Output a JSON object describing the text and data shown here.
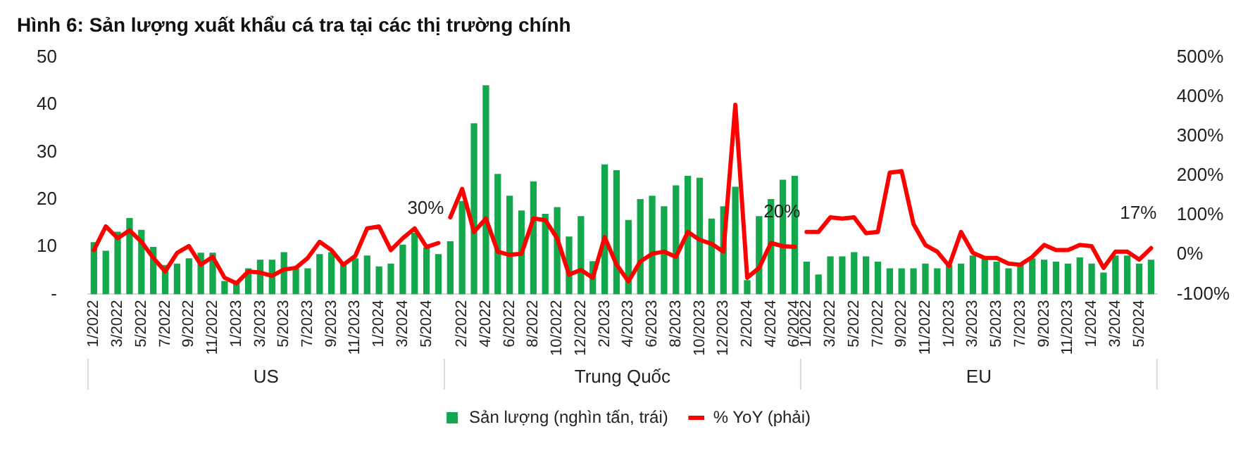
{
  "chart_data": {
    "type": "bar",
    "title": "Hình 6: Sản lượng xuất khẩu cá tra tại các thị trường chính",
    "categories": [
      "1/2022",
      null,
      "3/2022",
      null,
      "5/2022",
      null,
      "7/2022",
      null,
      "9/2022",
      null,
      "11/2022",
      null,
      "1/2023",
      null,
      "3/2023",
      null,
      "5/2023",
      null,
      "7/2023",
      null,
      "9/2023",
      null,
      "11/2023",
      null,
      "1/2024",
      null,
      "3/2024",
      null,
      "5/2024",
      null,
      null,
      "2/2022",
      null,
      "4/2022",
      null,
      "6/2022",
      null,
      "8/2022",
      null,
      "10/2022",
      null,
      "12/2022",
      null,
      "2/2023",
      null,
      "4/2023",
      null,
      "6/2023",
      null,
      "8/2023",
      null,
      "10/2023",
      null,
      "12/2023",
      null,
      "2/2024",
      null,
      "4/2024",
      null,
      "6/2024",
      "1/2022",
      null,
      "3/2022",
      null,
      "5/2022",
      null,
      "7/2022",
      null,
      "9/2022",
      null,
      "11/2022",
      null,
      "1/2023",
      null,
      "3/2023",
      null,
      "5/2023",
      null,
      "7/2023",
      null,
      "9/2023",
      null,
      "11/2023",
      null,
      "1/2024",
      null,
      "3/2024",
      null,
      "5/2024",
      null
    ],
    "series": [
      {
        "name": "Sản lượng (nghìn tấn, trái)",
        "color": "#13a84b",
        "values": [
          11,
          9.2,
          13.2,
          16.1,
          13.6,
          10,
          6.2,
          6.5,
          7.6,
          8.8,
          8.8,
          2.8,
          2.6,
          5.5,
          7.3,
          7.3,
          8.9,
          5.5,
          5.5,
          8.5,
          8.9,
          6.9,
          7.6,
          8.2,
          5.9,
          6.5,
          10.5,
          13,
          9.9,
          8.5,
          11.2,
          19.7,
          36.1,
          44.1,
          25.4,
          20.8,
          17.7,
          23.8,
          17,
          18.4,
          12.2,
          16.5,
          7,
          27.4,
          26.2,
          15.7,
          20.1,
          20.8,
          18.6,
          23,
          25,
          24.6,
          16,
          18.6,
          22.7,
          3,
          16.5,
          20.1,
          24.2,
          25,
          6.9,
          4.2,
          8,
          8,
          8.9,
          8,
          6.9,
          5.5,
          5.5,
          5.5,
          6.5,
          5.5,
          6.2,
          6.5,
          8.2,
          7.6,
          6.9,
          5.5,
          6.2,
          7.6,
          7.3,
          6.9,
          6.5,
          7.8,
          6.5,
          4.6,
          8.2,
          8.2,
          6.5,
          7.3
        ]
      },
      {
        "name": "% YoY (phải)",
        "type": "line",
        "axis": "y2",
        "color": "#ff0000",
        "values": [
          12,
          72,
          42,
          62,
          33,
          -8,
          -42,
          5,
          22,
          -25,
          -5,
          -58,
          -72,
          -42,
          -45,
          -53,
          -37,
          -33,
          -8,
          33,
          12,
          -25,
          -3,
          67,
          72,
          12,
          42,
          67,
          20,
          30,
          95,
          167,
          58,
          92,
          8,
          0,
          3,
          92,
          88,
          42,
          -50,
          -38,
          -58,
          45,
          -25,
          -67,
          -17,
          3,
          8,
          -5,
          58,
          38,
          28,
          8,
          380,
          -58,
          -33,
          30,
          22,
          20,
          58,
          58,
          95,
          92,
          95,
          55,
          58,
          208,
          212,
          78,
          25,
          8,
          -28,
          58,
          5,
          -8,
          -8,
          -22,
          -25,
          -5,
          25,
          12,
          12,
          25,
          22,
          -33,
          8,
          8,
          -12,
          17
        ],
        "value_labels": [
          null,
          null,
          null,
          null,
          null,
          null,
          null,
          null,
          null,
          null,
          null,
          null,
          null,
          null,
          null,
          null,
          null,
          null,
          null,
          null,
          null,
          null,
          null,
          null,
          null,
          null,
          null,
          null,
          null,
          "30%",
          null,
          null,
          null,
          null,
          null,
          null,
          null,
          null,
          null,
          null,
          null,
          null,
          null,
          null,
          null,
          null,
          null,
          null,
          null,
          null,
          null,
          null,
          null,
          null,
          null,
          null,
          null,
          null,
          null,
          "20%",
          null,
          null,
          null,
          null,
          null,
          null,
          null,
          null,
          null,
          null,
          null,
          null,
          null,
          null,
          null,
          null,
          null,
          null,
          null,
          null,
          null,
          null,
          null,
          null,
          null,
          null,
          null,
          null,
          null,
          "17%"
        ]
      }
    ],
    "ylim": [
      0,
      50
    ],
    "yticks": [
      {
        "value": 0,
        "label": "-"
      },
      10,
      20,
      30,
      40,
      50
    ],
    "y2lim": [
      -100,
      500
    ],
    "y2ticks": [
      {
        "value": -100,
        "label": "-100%"
      },
      {
        "value": 0,
        "label": "0%"
      },
      {
        "value": 100,
        "label": "100%"
      },
      {
        "value": 200,
        "label": "200%"
      },
      {
        "value": 300,
        "label": "300%"
      },
      {
        "value": 400,
        "label": "400%"
      },
      {
        "value": 500,
        "label": "500%"
      }
    ],
    "legend": "bottom",
    "marker": "none",
    "annotations": [
      "US",
      "Trung Quốc",
      "EU"
    ]
  }
}
